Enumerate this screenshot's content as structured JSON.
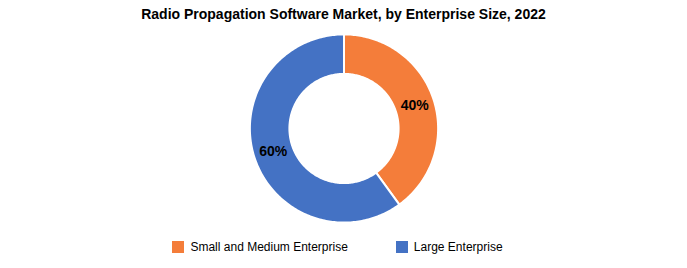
{
  "chart_data": {
    "type": "donut",
    "title": "Radio Propagation Software Market, by Enterprise Size, 2022",
    "categories": [
      "Small and Medium Enterprise",
      "Large Enterprise"
    ],
    "values": [
      40,
      60
    ],
    "value_labels": [
      "40%",
      "60%"
    ],
    "colors": [
      "#F47D3A",
      "#4472C4"
    ],
    "data_labels": true,
    "legend": "bottom"
  }
}
